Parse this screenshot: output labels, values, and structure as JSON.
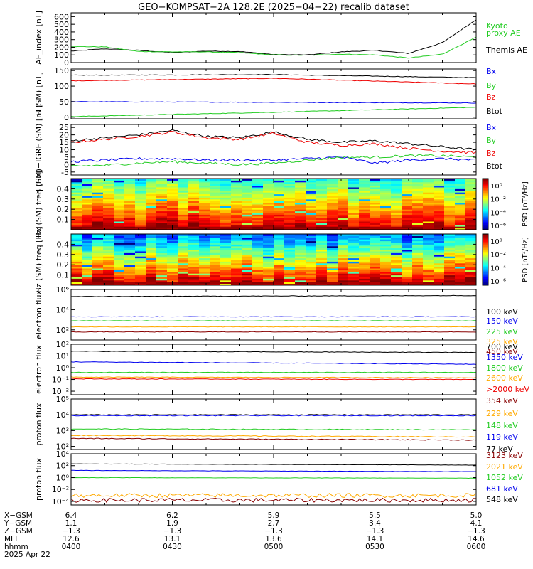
{
  "title": "GEO−KOMPSAT−2A 128.2E (2025−04−22) recalib dataset",
  "colors": {
    "black": "#000000",
    "blue": "#0000ee",
    "green": "#22cc22",
    "red": "#ee0000",
    "orange": "#ffaa00",
    "darkred": "#880000",
    "cyan": "#00aaaa"
  },
  "chart_data": [
    {
      "id": "ae",
      "type": "line",
      "ylabel": "AE_index [nT]",
      "ylim": [
        0,
        650
      ],
      "yticks": [
        0,
        100,
        200,
        300,
        400,
        500,
        600
      ],
      "scale": "linear",
      "legend": [
        {
          "text": "Kyoto",
          "color": "#22cc22"
        },
        {
          "text": "proxy AE",
          "color": "#22cc22"
        },
        {
          "text": "Themis AE",
          "color": "#000000"
        }
      ],
      "series": [
        {
          "name": "Themis AE",
          "color": "#000000",
          "t": [
            0,
            10,
            20,
            30,
            40,
            50,
            60,
            70,
            80,
            90,
            100,
            110,
            120
          ],
          "v": [
            150,
            180,
            160,
            130,
            150,
            145,
            105,
            100,
            140,
            160,
            120,
            260,
            560
          ]
        },
        {
          "name": "Kyoto proxy AE",
          "color": "#22cc22",
          "t": [
            0,
            10,
            20,
            30,
            40,
            50,
            60,
            70,
            80,
            90,
            100,
            110,
            120
          ],
          "v": [
            210,
            205,
            145,
            140,
            140,
            130,
            100,
            95,
            110,
            100,
            60,
            110,
            330
          ]
        }
      ]
    },
    {
      "id": "bsm",
      "type": "line",
      "ylabel": "B (SM) [nT]",
      "ylim": [
        -5,
        155
      ],
      "yticks": [
        0,
        50,
        100,
        150
      ],
      "scale": "linear",
      "legend": [
        {
          "text": "Bx",
          "color": "#0000ee"
        },
        {
          "text": "By",
          "color": "#22cc22"
        },
        {
          "text": "Bz",
          "color": "#ee0000"
        },
        {
          "text": "Btot",
          "color": "#000000"
        }
      ],
      "series": [
        {
          "name": "Btot",
          "color": "#000000",
          "t": [
            0,
            60,
            120
          ],
          "v": [
            135,
            137,
            127
          ]
        },
        {
          "name": "Bz",
          "color": "#ee0000",
          "t": [
            0,
            60,
            120
          ],
          "v": [
            117,
            125,
            107
          ]
        },
        {
          "name": "Bx",
          "color": "#0000ee",
          "t": [
            0,
            60,
            120
          ],
          "v": [
            50,
            48,
            46
          ]
        },
        {
          "name": "By",
          "color": "#22cc22",
          "t": [
            0,
            60,
            120
          ],
          "v": [
            2,
            16,
            32
          ]
        }
      ]
    },
    {
      "id": "bigrf",
      "type": "line",
      "ylabel": "B (SM)−IGRF (SM) [nT]",
      "ylim": [
        -7,
        27
      ],
      "yticks": [
        -5,
        0,
        5,
        10,
        15,
        20,
        25
      ],
      "scale": "linear",
      "legend": [
        {
          "text": "Bx",
          "color": "#0000ee"
        },
        {
          "text": "By",
          "color": "#22cc22"
        },
        {
          "text": "Bz",
          "color": "#ee0000"
        },
        {
          "text": "Btot",
          "color": "#000000"
        }
      ],
      "series": [
        {
          "name": "Btot",
          "color": "#000000",
          "t": [
            0,
            10,
            20,
            30,
            40,
            50,
            60,
            70,
            80,
            90,
            100,
            110,
            120
          ],
          "v": [
            16,
            18,
            20,
            23,
            19,
            18,
            22,
            17,
            15,
            16,
            14,
            12,
            10
          ]
        },
        {
          "name": "Bz",
          "color": "#ee0000",
          "t": [
            0,
            10,
            20,
            30,
            40,
            50,
            60,
            70,
            80,
            90,
            100,
            110,
            120
          ],
          "v": [
            15,
            17,
            19,
            22,
            18,
            17,
            21,
            15,
            13,
            14,
            11,
            9,
            8
          ]
        },
        {
          "name": "Bx",
          "color": "#0000ee",
          "t": [
            0,
            10,
            20,
            30,
            40,
            50,
            60,
            70,
            80,
            90,
            100,
            110,
            120
          ],
          "v": [
            2,
            3,
            4,
            4,
            3,
            3,
            3,
            4,
            5,
            1,
            3,
            4,
            3
          ]
        },
        {
          "name": "By",
          "color": "#22cc22",
          "t": [
            0,
            10,
            20,
            30,
            40,
            50,
            60,
            70,
            80,
            90,
            100,
            110,
            120
          ],
          "v": [
            -1,
            -0.5,
            1,
            2,
            1,
            0,
            1,
            3,
            5,
            5,
            6,
            6,
            5
          ]
        }
      ]
    },
    {
      "id": "bxspec",
      "type": "heatmap",
      "ylabel": "Bx (SM) freq [Hz]",
      "ylim": [
        0,
        0.5
      ],
      "yticks": [
        0.1,
        0.2,
        0.3,
        0.4
      ],
      "colorbar": {
        "label": "PSD [nT²/Hz]",
        "ticks": [
          "10⁰",
          "10⁻²",
          "10⁻⁴",
          "10⁻⁶"
        ]
      }
    },
    {
      "id": "bzspec",
      "type": "heatmap",
      "ylabel": "Bz (SM) freq [Hz]",
      "ylim": [
        0,
        0.5
      ],
      "yticks": [
        0.1,
        0.2,
        0.3,
        0.4
      ],
      "colorbar": {
        "label": "PSD [nT²/Hz]",
        "ticks": [
          "10⁰",
          "10⁻²",
          "10⁻⁴",
          "10⁻⁶"
        ]
      }
    },
    {
      "id": "elow",
      "type": "line",
      "ylabel": "electron flux",
      "ylim": [
        1,
        6
      ],
      "yticks": [
        "10²",
        "10⁴",
        "10⁶"
      ],
      "ytick_values": [
        2,
        4,
        6
      ],
      "scale": "log",
      "legend": [
        {
          "text": "100 keV",
          "color": "#000000"
        },
        {
          "text": "150 keV",
          "color": "#0000ee"
        },
        {
          "text": "225 keV",
          "color": "#22cc22"
        },
        {
          "text": "325 keV",
          "color": "#ffaa00"
        },
        {
          "text": "450 keV",
          "color": "#880000"
        }
      ],
      "series": [
        {
          "name": "100 keV",
          "color": "#000000",
          "t": [
            0,
            120
          ],
          "v": [
            5.3,
            5.4
          ]
        },
        {
          "name": "150 keV",
          "color": "#0000ee",
          "t": [
            0,
            120
          ],
          "v": [
            3.3,
            3.3
          ]
        },
        {
          "name": "225 keV",
          "color": "#22cc22",
          "t": [
            0,
            120
          ],
          "v": [
            2.9,
            2.9
          ]
        },
        {
          "name": "325 keV",
          "color": "#ffaa00",
          "t": [
            0,
            120
          ],
          "v": [
            2.3,
            2.3
          ]
        },
        {
          "name": "450 keV",
          "color": "#880000",
          "t": [
            0,
            120
          ],
          "v": [
            1.8,
            1.8
          ]
        }
      ]
    },
    {
      "id": "ehigh",
      "type": "line",
      "ylabel": "electron flux",
      "ylim": [
        -2.3,
        2
      ],
      "yticks": [
        "10⁻²",
        "10⁻¹",
        "10⁰",
        "10¹",
        "10²"
      ],
      "ytick_values": [
        -2,
        -1,
        0,
        1,
        2
      ],
      "scale": "log",
      "legend": [
        {
          "text": "700 keV",
          "color": "#000000"
        },
        {
          "text": "1350 keV",
          "color": "#0000ee"
        },
        {
          "text": "1800 keV",
          "color": "#22cc22"
        },
        {
          "text": "2600 keV",
          "color": "#ffaa00"
        },
        {
          "text": ">2000 keV",
          "color": "#ee0000"
        }
      ],
      "series": [
        {
          "name": "700 keV",
          "color": "#000000",
          "t": [
            0,
            120
          ],
          "v": [
            1.4,
            1.3
          ]
        },
        {
          "name": "1350 keV",
          "color": "#0000ee",
          "t": [
            0,
            120
          ],
          "v": [
            0.5,
            0.3
          ]
        },
        {
          "name": "1800 keV",
          "color": "#22cc22",
          "t": [
            0,
            120
          ],
          "v": [
            -0.4,
            -0.4
          ]
        },
        {
          "name": "2600 keV",
          "color": "#ffaa00",
          "t": [
            0,
            120
          ],
          "v": [
            -0.8,
            -0.85
          ]
        },
        {
          "name": ">2000 keV",
          "color": "#ee0000",
          "t": [
            0,
            120
          ],
          "v": [
            -0.95,
            -1.0
          ]
        }
      ]
    },
    {
      "id": "plow",
      "type": "line",
      "ylabel": "proton flux",
      "ylim": [
        1.8,
        5
      ],
      "yticks": [
        "10²",
        "10³",
        "10⁴",
        "10⁵"
      ],
      "ytick_values": [
        2,
        3,
        4,
        5
      ],
      "scale": "log",
      "legend": [
        {
          "text": "354 keV",
          "color": "#880000"
        },
        {
          "text": "229 keV",
          "color": "#ffaa00"
        },
        {
          "text": "148 keV",
          "color": "#22cc22"
        },
        {
          "text": "119 keV",
          "color": "#0000ee"
        },
        {
          "text": "77 keV",
          "color": "#000000"
        }
      ],
      "series": [
        {
          "name": "77 keV",
          "color": "#000000",
          "t": [
            0,
            120
          ],
          "v": [
            4.0,
            4.0
          ]
        },
        {
          "name": "119 keV",
          "color": "#0000ee",
          "t": [
            0,
            120
          ],
          "v": [
            3.95,
            3.95
          ]
        },
        {
          "name": "148 keV",
          "color": "#22cc22",
          "t": [
            0,
            120
          ],
          "v": [
            3.1,
            3.05
          ]
        },
        {
          "name": "229 keV",
          "color": "#ffaa00",
          "t": [
            0,
            120
          ],
          "v": [
            2.7,
            2.6
          ]
        },
        {
          "name": "354 keV",
          "color": "#880000",
          "t": [
            0,
            120
          ],
          "v": [
            2.5,
            2.4
          ]
        }
      ]
    },
    {
      "id": "phigh",
      "type": "line",
      "ylabel": "proton flux",
      "ylim": [
        -4.6,
        4
      ],
      "yticks": [
        "10⁻⁴",
        "10⁻²",
        "10⁰",
        "10²",
        "10⁴"
      ],
      "ytick_values": [
        -4,
        -2,
        0,
        2,
        4
      ],
      "scale": "log",
      "legend": [
        {
          "text": "3123 keV",
          "color": "#880000"
        },
        {
          "text": "2021 keV",
          "color": "#ffaa00"
        },
        {
          "text": "1052 keV",
          "color": "#22cc22"
        },
        {
          "text": "681 keV",
          "color": "#0000ee"
        },
        {
          "text": "548 keV",
          "color": "#000000"
        }
      ],
      "series": [
        {
          "name": "548 keV",
          "color": "#000000",
          "t": [
            0,
            120
          ],
          "v": [
            2.3,
            2.1
          ]
        },
        {
          "name": "681 keV",
          "color": "#0000ee",
          "t": [
            0,
            120
          ],
          "v": [
            1.2,
            1.0
          ]
        },
        {
          "name": "1052 keV",
          "color": "#22cc22",
          "t": [
            0,
            120
          ],
          "v": [
            0.0,
            -0.1
          ]
        },
        {
          "name": "2021 keV",
          "color": "#ffaa00",
          "t": [
            0,
            120
          ],
          "v": [
            -3.0,
            -3.0
          ]
        },
        {
          "name": "3123 keV",
          "color": "#880000",
          "t": [
            0,
            120
          ],
          "v": [
            -3.8,
            -3.8
          ]
        }
      ]
    }
  ],
  "xaxis": {
    "row_labels": [
      "X−GSM",
      "Y−GSM",
      "Z−GSM",
      "MLT",
      "hhmm",
      "2025 Apr 22"
    ],
    "ticks": [
      {
        "values": [
          "6.4",
          "1.1",
          "−1.3",
          "12.6",
          "0400"
        ]
      },
      {
        "values": [
          "6.2",
          "1.9",
          "−1.3",
          "13.1",
          "0430"
        ]
      },
      {
        "values": [
          "5.9",
          "2.7",
          "−1.3",
          "13.6",
          "0500"
        ]
      },
      {
        "values": [
          "5.5",
          "3.4",
          "−1.3",
          "14.1",
          "0530"
        ]
      },
      {
        "values": [
          "5.0",
          "4.1",
          "−1.3",
          "14.6",
          "0600"
        ]
      }
    ]
  }
}
